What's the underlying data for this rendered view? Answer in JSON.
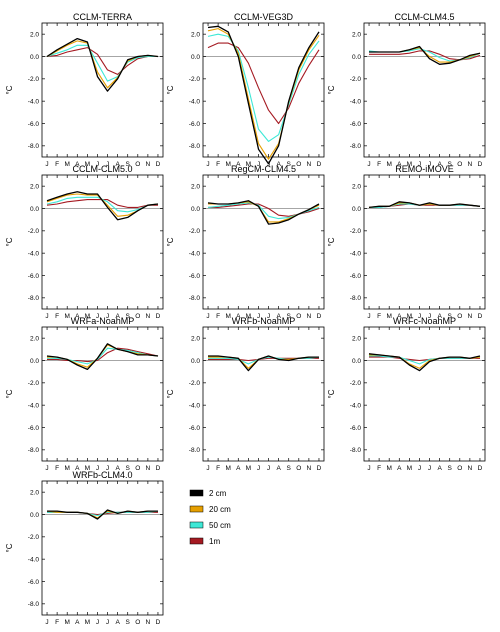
{
  "colors": {
    "2 cm": "#000000",
    "20 cm": "#e69f00",
    "50 cm": "#3ee8d6",
    "1m": "#a51a22"
  },
  "legend": {
    "placement": "bottom-center",
    "entries": [
      "2 cm",
      "20 cm",
      "50 cm",
      "1m"
    ]
  },
  "chart_data": [
    {
      "type": "line",
      "title": "CCLM-TERRA",
      "ylabel": "°C",
      "ylim": [
        -9,
        3
      ],
      "categories": [
        "J",
        "F",
        "M",
        "A",
        "M",
        "J",
        "J",
        "A",
        "S",
        "O",
        "N",
        "D"
      ],
      "yticks": [
        "2.0",
        "0.0",
        "-2.0",
        "-4.0",
        "-6.0",
        "-8.0"
      ],
      "series": [
        {
          "name": "2 cm",
          "values": [
            0.0,
            0.6,
            1.1,
            1.6,
            1.3,
            -1.8,
            -3.1,
            -2.0,
            -0.3,
            0.0,
            0.1,
            0.0
          ]
        },
        {
          "name": "20 cm",
          "values": [
            0.0,
            0.5,
            1.0,
            1.4,
            1.2,
            -1.4,
            -2.8,
            -1.9,
            -0.4,
            0.0,
            0.1,
            0.0
          ]
        },
        {
          "name": "50 cm",
          "values": [
            0.0,
            0.3,
            0.6,
            1.0,
            1.0,
            -0.6,
            -2.2,
            -1.8,
            -0.5,
            -0.1,
            0.0,
            0.0
          ]
        },
        {
          "name": "1m",
          "values": [
            0.0,
            0.1,
            0.4,
            0.6,
            0.8,
            0.2,
            -1.2,
            -1.6,
            -0.8,
            -0.2,
            0.0,
            0.0
          ]
        }
      ]
    },
    {
      "type": "line",
      "title": "CCLM-VEG3D",
      "ylabel": "°C",
      "ylim": [
        -9,
        3
      ],
      "categories": [
        "J",
        "F",
        "M",
        "A",
        "M",
        "J",
        "J",
        "A",
        "S",
        "O",
        "N",
        "D"
      ],
      "yticks": [
        "2.0",
        "0.0",
        "-2.0",
        "-4.0",
        "-6.0",
        "-8.0"
      ],
      "series": [
        {
          "name": "2 cm",
          "values": [
            2.6,
            2.7,
            2.2,
            0.0,
            -4.2,
            -8.3,
            -9.6,
            -8.0,
            -4.0,
            -1.0,
            0.8,
            2.2
          ]
        },
        {
          "name": "20 cm",
          "values": [
            2.3,
            2.5,
            2.0,
            0.3,
            -3.8,
            -7.8,
            -9.2,
            -7.8,
            -4.1,
            -1.2,
            0.6,
            1.9
          ]
        },
        {
          "name": "50 cm",
          "values": [
            1.8,
            2.0,
            1.8,
            0.5,
            -2.8,
            -6.5,
            -7.6,
            -7.0,
            -4.3,
            -1.6,
            0.2,
            1.4
          ]
        },
        {
          "name": "1m",
          "values": [
            0.8,
            1.2,
            1.2,
            0.8,
            -0.6,
            -2.8,
            -4.8,
            -6.0,
            -4.6,
            -2.4,
            -0.8,
            0.6
          ]
        }
      ]
    },
    {
      "type": "line",
      "title": "CCLM-CLM4.5",
      "ylabel": "°C",
      "ylim": [
        -9,
        3
      ],
      "categories": [
        "J",
        "F",
        "M",
        "A",
        "M",
        "J",
        "J",
        "A",
        "S",
        "O",
        "N",
        "D"
      ],
      "yticks": [
        "2.0",
        "0.0",
        "-2.0",
        "-4.0",
        "-6.0",
        "-8.0"
      ],
      "series": [
        {
          "name": "2 cm",
          "values": [
            0.4,
            0.4,
            0.4,
            0.4,
            0.6,
            0.9,
            -0.2,
            -0.7,
            -0.6,
            -0.3,
            0.1,
            0.3
          ]
        },
        {
          "name": "20 cm",
          "values": [
            0.4,
            0.4,
            0.4,
            0.4,
            0.6,
            0.8,
            0.0,
            -0.5,
            -0.5,
            -0.3,
            0.0,
            0.3
          ]
        },
        {
          "name": "50 cm",
          "values": [
            0.5,
            0.4,
            0.4,
            0.4,
            0.5,
            0.7,
            0.4,
            -0.1,
            -0.4,
            -0.3,
            -0.1,
            0.3
          ]
        },
        {
          "name": "1m",
          "values": [
            0.2,
            0.2,
            0.2,
            0.2,
            0.3,
            0.5,
            0.5,
            0.2,
            -0.2,
            -0.3,
            -0.2,
            0.1
          ]
        }
      ]
    },
    {
      "type": "line",
      "title": "CCLM-CLM5.0",
      "ylabel": "°C",
      "ylim": [
        -9,
        3
      ],
      "categories": [
        "J",
        "F",
        "M",
        "A",
        "M",
        "J",
        "J",
        "A",
        "S",
        "O",
        "N",
        "D"
      ],
      "yticks": [
        "2.0",
        "0.0",
        "-2.0",
        "-4.0",
        "-6.0",
        "-8.0"
      ],
      "series": [
        {
          "name": "2 cm",
          "values": [
            0.7,
            1.0,
            1.3,
            1.5,
            1.3,
            1.3,
            0.1,
            -1.0,
            -0.8,
            -0.2,
            0.3,
            0.4
          ]
        },
        {
          "name": "20 cm",
          "values": [
            0.6,
            0.9,
            1.2,
            1.3,
            1.2,
            1.2,
            0.3,
            -0.7,
            -0.6,
            -0.2,
            0.3,
            0.4
          ]
        },
        {
          "name": "50 cm",
          "values": [
            0.4,
            0.6,
            0.9,
            1.0,
            1.0,
            1.0,
            0.6,
            -0.2,
            -0.3,
            -0.1,
            0.3,
            0.4
          ]
        },
        {
          "name": "1m",
          "values": [
            0.3,
            0.4,
            0.6,
            0.7,
            0.8,
            0.8,
            0.8,
            0.3,
            0.1,
            0.1,
            0.3,
            0.3
          ]
        }
      ]
    },
    {
      "type": "line",
      "title": "RegCM-CLM4.5",
      "ylabel": "°C",
      "ylim": [
        -9,
        3
      ],
      "categories": [
        "J",
        "F",
        "M",
        "A",
        "M",
        "J",
        "J",
        "A",
        "S",
        "O",
        "N",
        "D"
      ],
      "yticks": [
        "2.0",
        "0.0",
        "-2.0",
        "-4.0",
        "-6.0",
        "-8.0"
      ],
      "series": [
        {
          "name": "2 cm",
          "values": [
            0.5,
            0.4,
            0.4,
            0.5,
            0.7,
            0.2,
            -1.4,
            -1.3,
            -1.0,
            -0.5,
            -0.1,
            0.4
          ]
        },
        {
          "name": "20 cm",
          "values": [
            0.4,
            0.4,
            0.4,
            0.5,
            0.6,
            0.2,
            -1.2,
            -1.2,
            -0.9,
            -0.5,
            -0.1,
            0.3
          ]
        },
        {
          "name": "50 cm",
          "values": [
            0.1,
            0.2,
            0.3,
            0.4,
            0.5,
            0.3,
            -0.7,
            -0.9,
            -0.8,
            -0.5,
            -0.2,
            0.1
          ]
        },
        {
          "name": "1m",
          "values": [
            0.1,
            0.1,
            0.2,
            0.3,
            0.4,
            0.4,
            0.0,
            -0.6,
            -0.7,
            -0.5,
            -0.3,
            0.0
          ]
        }
      ]
    },
    {
      "type": "line",
      "title": "REMO-iMOVE",
      "ylabel": "°C",
      "ylim": [
        -9,
        3
      ],
      "categories": [
        "J",
        "F",
        "M",
        "A",
        "M",
        "J",
        "J",
        "A",
        "S",
        "O",
        "N",
        "D"
      ],
      "yticks": [
        "2.0",
        "0.0",
        "-2.0",
        "-4.0",
        "-6.0",
        "-8.0"
      ],
      "series": [
        {
          "name": "2 cm",
          "values": [
            0.1,
            0.2,
            0.2,
            0.6,
            0.5,
            0.3,
            0.5,
            0.3,
            0.3,
            0.4,
            0.3,
            0.2
          ]
        },
        {
          "name": "20 cm",
          "values": [
            0.1,
            0.2,
            0.2,
            0.5,
            0.5,
            0.3,
            0.4,
            0.3,
            0.3,
            0.4,
            0.3,
            0.2
          ]
        },
        {
          "name": "50 cm",
          "values": [
            0.1,
            0.1,
            0.2,
            0.4,
            0.4,
            0.3,
            0.4,
            0.3,
            0.3,
            0.3,
            0.3,
            0.2
          ]
        },
        {
          "name": "1m",
          "values": [
            0.1,
            0.1,
            0.2,
            0.3,
            0.4,
            0.3,
            0.3,
            0.3,
            0.3,
            0.3,
            0.3,
            0.2
          ]
        }
      ]
    },
    {
      "type": "line",
      "title": "WRFa-NoahMP",
      "ylabel": "°C",
      "ylim": [
        -9,
        3
      ],
      "categories": [
        "J",
        "F",
        "M",
        "A",
        "M",
        "J",
        "J",
        "A",
        "S",
        "O",
        "N",
        "D"
      ],
      "yticks": [
        "2.0",
        "0.0",
        "-2.0",
        "-4.0",
        "-6.0",
        "-8.0"
      ],
      "series": [
        {
          "name": "2 cm",
          "values": [
            0.4,
            0.3,
            0.1,
            -0.4,
            -0.8,
            0.2,
            1.5,
            1.0,
            0.8,
            0.5,
            0.5,
            0.4
          ]
        },
        {
          "name": "20 cm",
          "values": [
            0.3,
            0.3,
            0.1,
            -0.3,
            -0.6,
            0.2,
            1.4,
            1.0,
            0.8,
            0.6,
            0.5,
            0.4
          ]
        },
        {
          "name": "50 cm",
          "values": [
            0.2,
            0.2,
            0.1,
            -0.1,
            -0.3,
            0.1,
            1.1,
            1.0,
            0.9,
            0.7,
            0.5,
            0.4
          ]
        },
        {
          "name": "1m",
          "values": [
            0.1,
            0.1,
            0.0,
            0.0,
            -0.1,
            0.0,
            0.7,
            1.1,
            1.0,
            0.8,
            0.6,
            0.4
          ]
        }
      ]
    },
    {
      "type": "line",
      "title": "WRFb-NoahMP",
      "ylabel": "°C",
      "ylim": [
        -9,
        3
      ],
      "categories": [
        "J",
        "F",
        "M",
        "A",
        "M",
        "J",
        "J",
        "A",
        "S",
        "O",
        "N",
        "D"
      ],
      "yticks": [
        "2.0",
        "0.0",
        "-2.0",
        "-4.0",
        "-6.0",
        "-8.0"
      ],
      "series": [
        {
          "name": "2 cm",
          "values": [
            0.4,
            0.4,
            0.3,
            0.2,
            -0.9,
            0.1,
            0.4,
            0.1,
            0.0,
            0.2,
            0.3,
            0.3
          ]
        },
        {
          "name": "20 cm",
          "values": [
            0.3,
            0.3,
            0.3,
            0.2,
            -0.7,
            0.1,
            0.4,
            0.1,
            0.1,
            0.2,
            0.3,
            0.3
          ]
        },
        {
          "name": "50 cm",
          "values": [
            0.2,
            0.2,
            0.2,
            0.1,
            -0.3,
            0.1,
            0.3,
            0.2,
            0.1,
            0.2,
            0.2,
            0.3
          ]
        },
        {
          "name": "1m",
          "values": [
            0.1,
            0.1,
            0.1,
            0.1,
            0.0,
            0.1,
            0.2,
            0.2,
            0.2,
            0.2,
            0.2,
            0.2
          ]
        }
      ]
    },
    {
      "type": "line",
      "title": "WRFc-NoahMP",
      "ylabel": "°C",
      "ylim": [
        -9,
        3
      ],
      "categories": [
        "J",
        "F",
        "M",
        "A",
        "M",
        "J",
        "J",
        "A",
        "S",
        "O",
        "N",
        "D"
      ],
      "yticks": [
        "2.0",
        "0.0",
        "-2.0",
        "-4.0",
        "-6.0",
        "-8.0"
      ],
      "series": [
        {
          "name": "2 cm",
          "values": [
            0.6,
            0.5,
            0.4,
            0.3,
            -0.4,
            -0.9,
            -0.1,
            0.2,
            0.3,
            0.3,
            0.2,
            0.4
          ]
        },
        {
          "name": "20 cm",
          "values": [
            0.5,
            0.5,
            0.4,
            0.3,
            -0.3,
            -0.7,
            0.0,
            0.2,
            0.3,
            0.3,
            0.2,
            0.3
          ]
        },
        {
          "name": "50 cm",
          "values": [
            0.4,
            0.4,
            0.3,
            0.3,
            0.0,
            -0.3,
            0.1,
            0.2,
            0.2,
            0.2,
            0.2,
            0.3
          ]
        },
        {
          "name": "1m",
          "values": [
            0.3,
            0.3,
            0.3,
            0.2,
            0.1,
            0.0,
            0.1,
            0.2,
            0.2,
            0.2,
            0.2,
            0.2
          ]
        }
      ]
    },
    {
      "type": "line",
      "title": "WRFb-CLM4.0",
      "ylabel": "°C",
      "ylim": [
        -9,
        3
      ],
      "categories": [
        "J",
        "F",
        "M",
        "A",
        "M",
        "J",
        "J",
        "A",
        "S",
        "O",
        "N",
        "D"
      ],
      "yticks": [
        "2.0",
        "0.0",
        "-2.0",
        "-4.0",
        "-6.0",
        "-8.0"
      ],
      "series": [
        {
          "name": "2 cm",
          "values": [
            0.3,
            0.3,
            0.2,
            0.2,
            0.1,
            -0.4,
            0.4,
            0.1,
            0.3,
            0.2,
            0.3,
            0.3
          ]
        },
        {
          "name": "20 cm",
          "values": [
            0.3,
            0.2,
            0.2,
            0.2,
            0.1,
            -0.3,
            0.3,
            0.1,
            0.3,
            0.2,
            0.3,
            0.3
          ]
        },
        {
          "name": "50 cm",
          "values": [
            0.2,
            0.2,
            0.2,
            0.2,
            0.1,
            -0.1,
            0.2,
            0.2,
            0.2,
            0.2,
            0.2,
            0.3
          ]
        },
        {
          "name": "1m",
          "values": [
            0.2,
            0.2,
            0.2,
            0.2,
            0.1,
            0.0,
            0.1,
            0.2,
            0.2,
            0.2,
            0.2,
            0.2
          ]
        }
      ]
    }
  ]
}
